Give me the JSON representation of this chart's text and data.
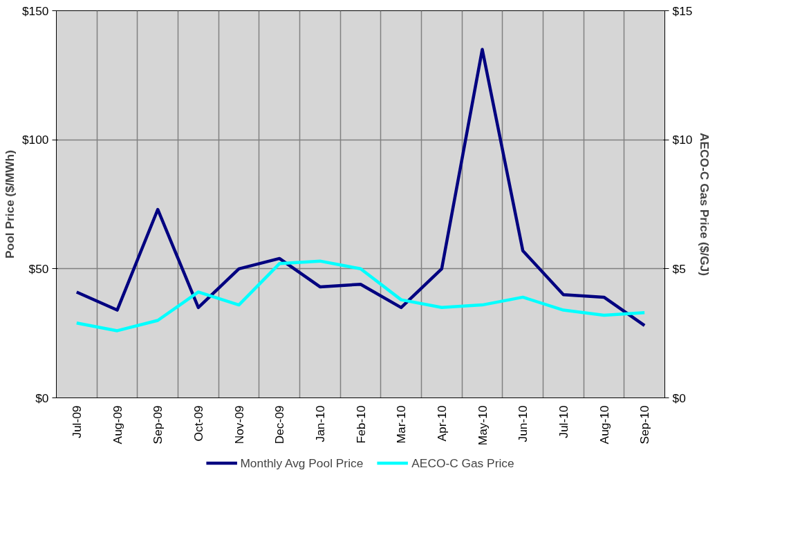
{
  "chart_data": {
    "type": "line",
    "categories": [
      "Jul-09",
      "Aug-09",
      "Sep-09",
      "Oct-09",
      "Nov-09",
      "Dec-09",
      "Jan-10",
      "Feb-10",
      "Mar-10",
      "Apr-10",
      "May-10",
      "Jun-10",
      "Jul-10",
      "Aug-10",
      "Sep-10"
    ],
    "ylabel": "Pool Price ($/MWh)",
    "y2label": "AECO-C Gas Price ($/GJ)",
    "ylim": [
      0,
      150
    ],
    "yticks": [
      {
        "value": 0,
        "label": "$0"
      },
      {
        "value": 50,
        "label": "$50"
      },
      {
        "value": 100,
        "label": "$100"
      },
      {
        "value": 150,
        "label": "$150"
      }
    ],
    "y2lim": [
      0,
      15
    ],
    "y2ticks": [
      {
        "value": 0,
        "label": "$0"
      },
      {
        "value": 5,
        "label": "$5"
      },
      {
        "value": 10,
        "label": "$10"
      },
      {
        "value": 15,
        "label": "$15"
      }
    ],
    "grid": true,
    "legend": "bottom",
    "marker": "none",
    "line_style": "solid",
    "series": [
      {
        "name": "Monthly Avg Pool Price",
        "color": "#000080",
        "values": [
          41,
          34,
          73,
          35,
          50,
          54,
          43,
          44,
          35,
          50,
          135,
          57,
          40,
          39,
          28
        ]
      },
      {
        "name": "AECO-C Gas Price",
        "color": "#00ffff",
        "axis": "y2",
        "values": [
          2.9,
          2.6,
          3.0,
          4.1,
          3.6,
          5.2,
          5.3,
          5.0,
          3.8,
          3.5,
          3.6,
          3.9,
          3.4,
          3.2,
          3.3
        ]
      }
    ]
  }
}
